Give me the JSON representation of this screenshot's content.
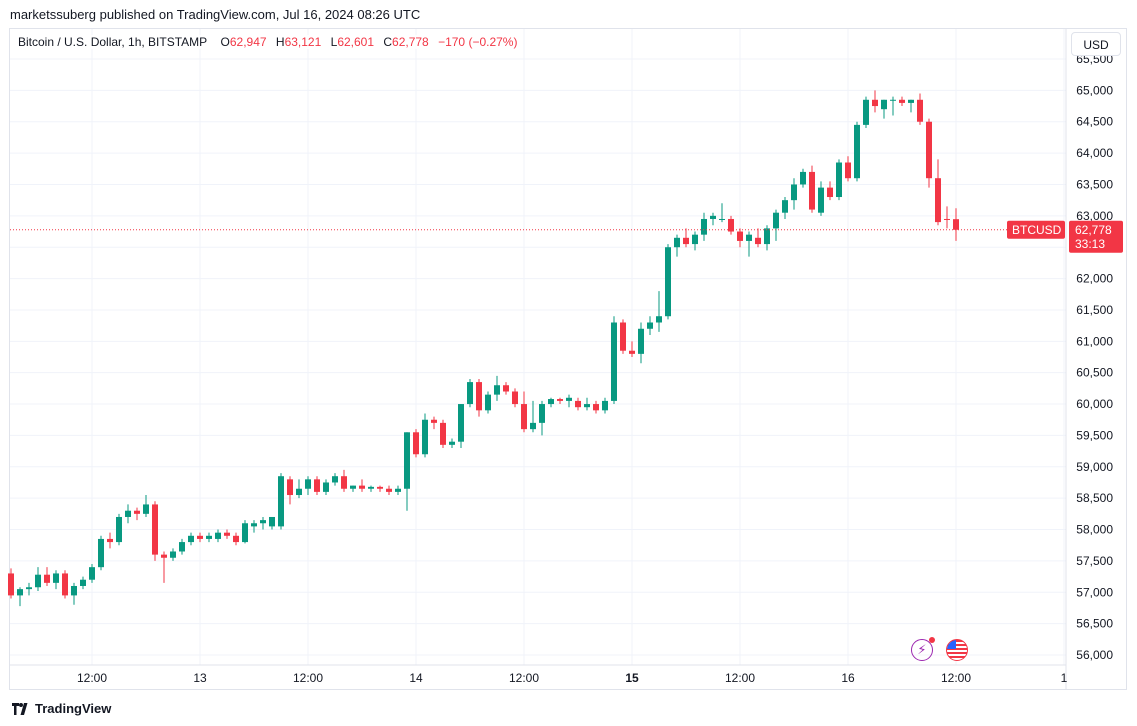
{
  "header": {
    "published": "marketssuberg published on TradingView.com, Jul 16, 2024 08:26 UTC"
  },
  "legend": {
    "symbol": "Bitcoin / U.S. Dollar, 1h, BITSTAMP",
    "open_label": "O",
    "open": "62,947",
    "high_label": "H",
    "high": "63,121",
    "low_label": "L",
    "low": "62,601",
    "close_label": "C",
    "close": "62,778",
    "change": "−170 (−0.27%)"
  },
  "currency_button": "USD",
  "price_tag": {
    "symbol": "BTCUSD",
    "price": "62,778",
    "countdown": "33:13"
  },
  "footer": {
    "brand": "TradingView"
  },
  "icons": {
    "events": "bolt-icon",
    "economic": "us-flag-icon"
  },
  "colors": {
    "up": "#089981",
    "down": "#f23645",
    "grid": "#f0f3fa",
    "text": "#131722"
  },
  "chart_data": {
    "type": "candlestick",
    "title": "Bitcoin / U.S. Dollar, 1h, BITSTAMP",
    "yticks": [
      56000,
      56500,
      57000,
      57500,
      58000,
      58500,
      59000,
      59500,
      60000,
      60500,
      61000,
      61500,
      62000,
      62500,
      63000,
      63500,
      64000,
      64500,
      65000,
      65500
    ],
    "ytick_labels": [
      "56,000",
      "56,500",
      "57,000",
      "57,500",
      "58,000",
      "58,500",
      "59,000",
      "59,500",
      "60,000",
      "60,500",
      "61,000",
      "61,500",
      "62,000",
      "62,500",
      "63,000",
      "63,500",
      "64,000",
      "64,500",
      "65,000",
      "65,500"
    ],
    "ylim": [
      55900,
      65550
    ],
    "xticks": [
      {
        "label": "12:00",
        "bar": 9,
        "bold": false
      },
      {
        "label": "13",
        "bar": 21,
        "bold": false
      },
      {
        "label": "12:00",
        "bar": 33,
        "bold": false
      },
      {
        "label": "14",
        "bar": 45,
        "bold": false
      },
      {
        "label": "12:00",
        "bar": 57,
        "bold": false
      },
      {
        "label": "15",
        "bar": 69,
        "bold": true
      },
      {
        "label": "12:00",
        "bar": 81,
        "bold": false
      },
      {
        "label": "16",
        "bar": 93,
        "bold": false
      },
      {
        "label": "12:00",
        "bar": 105,
        "bold": false
      },
      {
        "label": "1",
        "bar": 117,
        "bold": false
      }
    ],
    "last_price": 62778,
    "candles": [
      [
        57300,
        57380,
        56900,
        56950
      ],
      [
        56950,
        57080,
        56780,
        57050
      ],
      [
        57050,
        57150,
        56950,
        57080
      ],
      [
        57080,
        57400,
        57020,
        57280
      ],
      [
        57280,
        57400,
        57100,
        57150
      ],
      [
        57150,
        57350,
        57050,
        57300
      ],
      [
        57300,
        57350,
        56900,
        56950
      ],
      [
        56950,
        57150,
        56800,
        57100
      ],
      [
        57100,
        57250,
        57050,
        57200
      ],
      [
        57200,
        57450,
        57150,
        57400
      ],
      [
        57400,
        57900,
        57350,
        57850
      ],
      [
        57850,
        57950,
        57700,
        57800
      ],
      [
        57800,
        58250,
        57750,
        58200
      ],
      [
        58200,
        58400,
        58100,
        58300
      ],
      [
        58300,
        58350,
        58150,
        58250
      ],
      [
        58250,
        58550,
        58200,
        58400
      ],
      [
        58400,
        58450,
        57500,
        57600
      ],
      [
        57600,
        57650,
        57150,
        57550
      ],
      [
        57550,
        57700,
        57500,
        57650
      ],
      [
        57650,
        57850,
        57600,
        57800
      ],
      [
        57800,
        57950,
        57750,
        57900
      ],
      [
        57900,
        57950,
        57800,
        57850
      ],
      [
        57850,
        57950,
        57800,
        57900
      ],
      [
        57850,
        58000,
        57800,
        57950
      ],
      [
        57950,
        58000,
        57850,
        57900
      ],
      [
        57900,
        57950,
        57750,
        57800
      ],
      [
        57800,
        58150,
        57780,
        58100
      ],
      [
        58050,
        58150,
        57950,
        58100
      ],
      [
        58100,
        58200,
        58000,
        58150
      ],
      [
        58050,
        58200,
        58000,
        58200
      ],
      [
        58050,
        58900,
        58000,
        58850
      ],
      [
        58800,
        58850,
        58400,
        58550
      ],
      [
        58550,
        58800,
        58500,
        58650
      ],
      [
        58650,
        58850,
        58550,
        58800
      ],
      [
        58800,
        58850,
        58550,
        58600
      ],
      [
        58600,
        58800,
        58550,
        58750
      ],
      [
        58750,
        58900,
        58700,
        58850
      ],
      [
        58850,
        58950,
        58600,
        58650
      ],
      [
        58650,
        58700,
        58600,
        58700
      ],
      [
        58700,
        58800,
        58600,
        58650
      ],
      [
        58650,
        58700,
        58600,
        58680
      ],
      [
        58680,
        58700,
        58600,
        58650
      ],
      [
        58650,
        58700,
        58550,
        58600
      ],
      [
        58600,
        58700,
        58550,
        58650
      ],
      [
        58650,
        59550,
        58300,
        59550
      ],
      [
        59550,
        59600,
        59150,
        59200
      ],
      [
        59200,
        59850,
        59150,
        59750
      ],
      [
        59750,
        59800,
        59600,
        59700
      ],
      [
        59700,
        59750,
        59300,
        59350
      ],
      [
        59350,
        59450,
        59300,
        59400
      ],
      [
        59400,
        60000,
        59300,
        60000
      ],
      [
        60000,
        60400,
        59950,
        60350
      ],
      [
        60350,
        60400,
        59800,
        59900
      ],
      [
        59900,
        60200,
        59850,
        60150
      ],
      [
        60150,
        60450,
        60050,
        60300
      ],
      [
        60300,
        60350,
        60150,
        60200
      ],
      [
        60200,
        60250,
        59950,
        60000
      ],
      [
        60000,
        60200,
        59550,
        59600
      ],
      [
        59600,
        60050,
        59550,
        59700
      ],
      [
        59700,
        60050,
        59500,
        60000
      ],
      [
        60000,
        60100,
        59950,
        60080
      ],
      [
        60080,
        60100,
        60000,
        60050
      ],
      [
        60050,
        60150,
        59950,
        60100
      ],
      [
        60050,
        60100,
        59900,
        59950
      ],
      [
        59950,
        60100,
        59900,
        60000
      ],
      [
        60000,
        60050,
        59850,
        59900
      ],
      [
        59900,
        60100,
        59850,
        60050
      ],
      [
        60050,
        61400,
        60000,
        61300
      ],
      [
        61300,
        61350,
        60800,
        60850
      ],
      [
        60850,
        61000,
        60750,
        60800
      ],
      [
        60800,
        61300,
        60650,
        61200
      ],
      [
        61200,
        61400,
        61100,
        61300
      ],
      [
        61300,
        61800,
        61150,
        61400
      ],
      [
        61400,
        62550,
        61350,
        62500
      ],
      [
        62500,
        62700,
        62350,
        62650
      ],
      [
        62650,
        62800,
        62500,
        62550
      ],
      [
        62550,
        62750,
        62450,
        62700
      ],
      [
        62700,
        63050,
        62600,
        62950
      ],
      [
        62950,
        63050,
        62850,
        63000
      ],
      [
        62950,
        63200,
        62900,
        62950
      ],
      [
        62950,
        63000,
        62700,
        62750
      ],
      [
        62750,
        62800,
        62500,
        62600
      ],
      [
        62600,
        62750,
        62350,
        62700
      ],
      [
        62650,
        62800,
        62500,
        62550
      ],
      [
        62550,
        62850,
        62450,
        62800
      ],
      [
        62800,
        63100,
        62600,
        63050
      ],
      [
        63050,
        63300,
        62950,
        63250
      ],
      [
        63250,
        63600,
        63100,
        63500
      ],
      [
        63500,
        63750,
        63450,
        63700
      ],
      [
        63700,
        63800,
        63050,
        63100
      ],
      [
        63050,
        63550,
        63000,
        63450
      ],
      [
        63450,
        63550,
        63250,
        63300
      ],
      [
        63300,
        63900,
        63250,
        63850
      ],
      [
        63850,
        63950,
        63550,
        63600
      ],
      [
        63600,
        64500,
        63550,
        64450
      ],
      [
        64450,
        64900,
        64400,
        64850
      ],
      [
        64850,
        65000,
        64650,
        64750
      ],
      [
        64700,
        64850,
        64550,
        64850
      ],
      [
        64850,
        64900,
        64600,
        64850
      ],
      [
        64850,
        64900,
        64750,
        64800
      ],
      [
        64800,
        64850,
        64650,
        64850
      ],
      [
        64850,
        64950,
        64450,
        64500
      ],
      [
        64500,
        64550,
        63450,
        63600
      ],
      [
        63600,
        63900,
        62850,
        62900
      ],
      [
        62950,
        63150,
        62800,
        62947
      ],
      [
        62947,
        63121,
        62601,
        62778
      ]
    ]
  }
}
